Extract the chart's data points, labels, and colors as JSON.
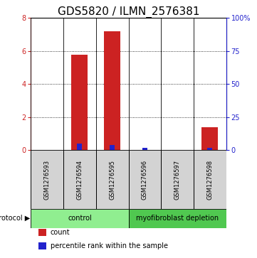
{
  "title": "GDS5820 / ILMN_2576381",
  "samples": [
    "GSM1276593",
    "GSM1276594",
    "GSM1276595",
    "GSM1276596",
    "GSM1276597",
    "GSM1276598"
  ],
  "red_values": [
    0.0,
    5.8,
    7.2,
    0.0,
    0.0,
    1.4
  ],
  "blue_values": [
    0.0,
    5.0,
    4.0,
    1.5,
    0.0,
    2.0
  ],
  "ylim_left": [
    0,
    8
  ],
  "ylim_right": [
    0,
    100
  ],
  "left_yticks": [
    0,
    2,
    4,
    6,
    8
  ],
  "right_yticks": [
    0,
    25,
    50,
    75,
    100
  ],
  "right_yticklabels": [
    "0",
    "25",
    "50",
    "75",
    "100%"
  ],
  "red_color": "#CC2222",
  "blue_color": "#2222CC",
  "protocol_groups": [
    {
      "label": "control",
      "span": [
        0,
        3
      ],
      "color": "#90EE90"
    },
    {
      "label": "myofibroblast depletion",
      "span": [
        3,
        6
      ],
      "color": "#50C850"
    }
  ],
  "sample_box_color": "#D3D3D3",
  "legend_items": [
    {
      "color": "#CC2222",
      "label": "count"
    },
    {
      "color": "#2222CC",
      "label": "percentile rank within the sample"
    }
  ],
  "red_bar_width": 0.5,
  "blue_bar_width": 0.15,
  "title_fontsize": 11,
  "tick_fontsize": 7,
  "label_fontsize": 8
}
